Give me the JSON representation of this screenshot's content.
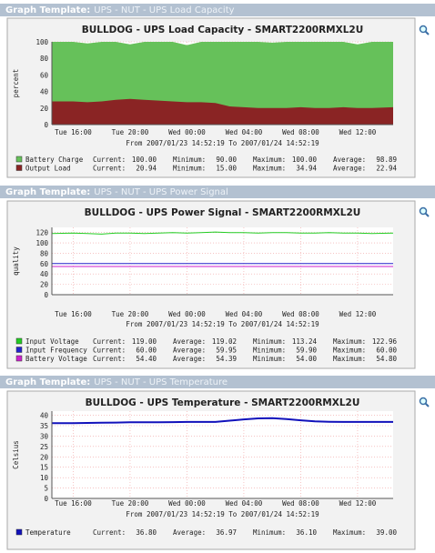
{
  "headers": [
    {
      "label": "Graph Template:",
      "name": "UPS - NUT - UPS Load Capacity"
    },
    {
      "label": "Graph Template:",
      "name": "UPS - NUT - UPS Power Signal"
    },
    {
      "label": "Graph Template:",
      "name": "UPS - NUT - UPS Temperature"
    }
  ],
  "chart_data": [
    {
      "type": "area",
      "title": "BULLDOG - UPS Load Capacity - SMART2200RMXL2U",
      "subtitle": "From 2007/01/23 14:52:19 To 2007/01/24 14:52:19",
      "y_label": "percent",
      "categories": [
        null,
        "Tue 16:00",
        null,
        null,
        null,
        "Tue 20:00",
        null,
        null,
        null,
        "Wed 00:00",
        null,
        null,
        null,
        "Wed 04:00",
        null,
        null,
        null,
        "Wed 08:00",
        null,
        null,
        null,
        "Wed 12:00",
        null,
        null
      ],
      "ylim": [
        0,
        100
      ],
      "yticks": [
        0,
        20,
        40,
        60,
        80,
        100
      ],
      "grid": true,
      "series": [
        {
          "name": "Battery Charge",
          "color": "#66c15a",
          "values": [
            100,
            100,
            98,
            100,
            100,
            97,
            100,
            100,
            100,
            96,
            100,
            100,
            100,
            100,
            100,
            99,
            100,
            100,
            100,
            100,
            100,
            97,
            100,
            100
          ],
          "stats": [
            {
              "label": "Current:",
              "value": "100.00"
            },
            {
              "label": "Minimum:",
              "value": "90.00"
            },
            {
              "label": "Maximum:",
              "value": "100.00"
            },
            {
              "label": "Average:",
              "value": "98.89"
            }
          ]
        },
        {
          "name": "Output Load",
          "color": "#8a2424",
          "values": [
            28,
            28,
            27,
            28,
            30,
            31,
            30,
            29,
            28,
            27,
            27,
            26,
            22,
            21,
            20,
            20,
            20,
            21,
            20,
            20,
            21,
            20,
            20,
            21
          ],
          "stats": [
            {
              "label": "Current:",
              "value": "20.94"
            },
            {
              "label": "Minimum:",
              "value": "15.00"
            },
            {
              "label": "Maximum:",
              "value": "34.94"
            },
            {
              "label": "Average:",
              "value": "22.94"
            }
          ]
        }
      ]
    },
    {
      "type": "line",
      "title": "BULLDOG - UPS Power Signal - SMART2200RMXL2U",
      "subtitle": "From 2007/01/23 14:52:19 To 2007/01/24 14:52:19",
      "y_label": "quality",
      "categories": [
        null,
        "Tue 16:00",
        null,
        null,
        null,
        "Tue 20:00",
        null,
        null,
        null,
        "Wed 00:00",
        null,
        null,
        null,
        "Wed 04:00",
        null,
        null,
        null,
        "Wed 08:00",
        null,
        null,
        null,
        "Wed 12:00",
        null,
        null
      ],
      "ylim": [
        0,
        130
      ],
      "yticks": [
        0,
        20,
        40,
        60,
        80,
        100,
        120
      ],
      "grid": true,
      "series": [
        {
          "name": "Input Voltage",
          "color": "#22cc22",
          "values": [
            118,
            119,
            118,
            117,
            119,
            119,
            118,
            119,
            120,
            119,
            120,
            121,
            120,
            120,
            119,
            120,
            120,
            119,
            119,
            120,
            119,
            119,
            118,
            119
          ],
          "stats": [
            {
              "label": "Current:",
              "value": "119.00"
            },
            {
              "label": "Average:",
              "value": "119.02"
            },
            {
              "label": "Minimum:",
              "value": "113.24"
            },
            {
              "label": "Maximum:",
              "value": "122.96"
            }
          ]
        },
        {
          "name": "Input Frequency",
          "color": "#2222cc",
          "values": [
            60,
            60,
            60,
            60,
            60,
            60,
            60,
            60,
            60,
            60,
            60,
            60,
            60,
            60,
            60,
            60,
            60,
            60,
            60,
            60,
            60,
            60,
            60,
            60
          ],
          "stats": [
            {
              "label": "Current:",
              "value": "60.00"
            },
            {
              "label": "Average:",
              "value": "59.95"
            },
            {
              "label": "Minimum:",
              "value": "59.90"
            },
            {
              "label": "Maximum:",
              "value": "60.00"
            }
          ]
        },
        {
          "name": "Battery Voltage",
          "color": "#cc22cc",
          "values": [
            54.4,
            54.4,
            54.4,
            54.4,
            54.4,
            54.4,
            54.4,
            54.4,
            54.4,
            54.4,
            54.4,
            54.4,
            54.4,
            54.4,
            54.4,
            54.4,
            54.4,
            54.4,
            54.4,
            54.4,
            54.4,
            54.4,
            54.4,
            54.4
          ],
          "stats": [
            {
              "label": "Current:",
              "value": "54.40"
            },
            {
              "label": "Average:",
              "value": "54.39"
            },
            {
              "label": "Minimum:",
              "value": "54.00"
            },
            {
              "label": "Maximum:",
              "value": "54.80"
            }
          ]
        }
      ]
    },
    {
      "type": "line",
      "title": "BULLDOG - UPS Temperature - SMART2200RMXL2U",
      "subtitle": "From 2007/01/23 14:52:19 To 2007/01/24 14:52:19",
      "y_label": "Celsius",
      "categories": [
        null,
        "Tue 16:00",
        null,
        null,
        null,
        "Tue 20:00",
        null,
        null,
        null,
        "Wed 00:00",
        null,
        null,
        null,
        "Wed 04:00",
        null,
        null,
        null,
        "Wed 08:00",
        null,
        null,
        null,
        "Wed 12:00",
        null,
        null
      ],
      "ylim": [
        0,
        42
      ],
      "yticks": [
        0,
        5,
        10,
        15,
        20,
        25,
        30,
        35,
        40
      ],
      "grid": true,
      "series": [
        {
          "name": "Temperature",
          "color": "#1111bb",
          "values": [
            36.2,
            36.2,
            36.3,
            36.4,
            36.5,
            36.6,
            36.6,
            36.6,
            36.7,
            36.8,
            36.8,
            36.8,
            37.4,
            38.0,
            38.5,
            38.6,
            38.2,
            37.6,
            37.1,
            36.9,
            36.8,
            36.8,
            36.8,
            36.8
          ],
          "stats": [
            {
              "label": "Current:",
              "value": "36.80"
            },
            {
              "label": "Average:",
              "value": "36.97"
            },
            {
              "label": "Minimum:",
              "value": "36.10"
            },
            {
              "label": "Maximum:",
              "value": "39.00"
            }
          ]
        }
      ]
    }
  ]
}
